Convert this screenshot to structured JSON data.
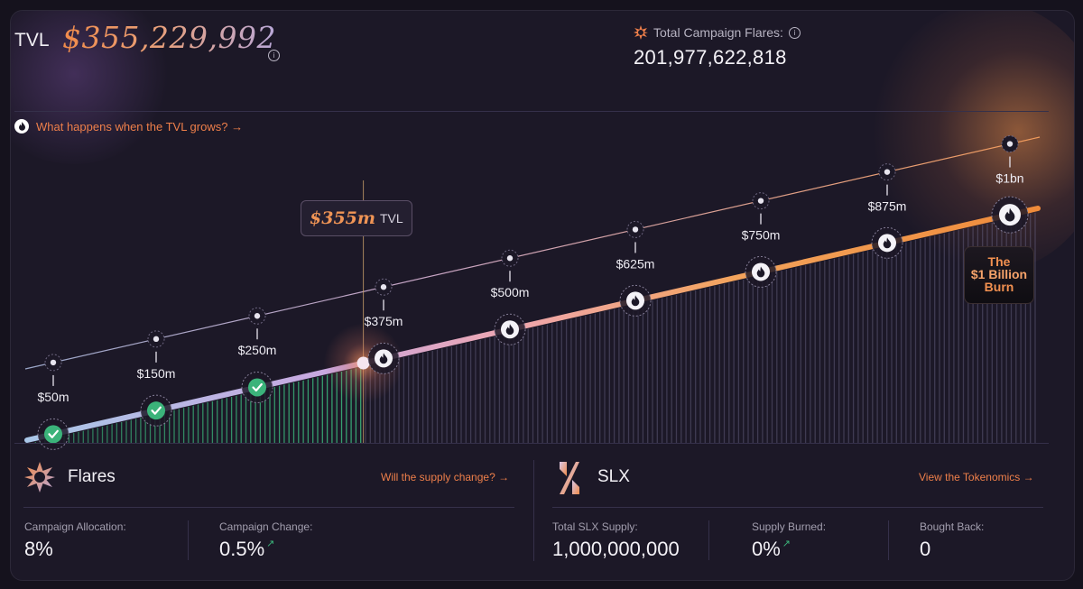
{
  "header": {
    "tvl_label": "TVL",
    "tvl_value": "$355,229,992",
    "flares_label": "Total Campaign Flares:",
    "flares_value": "201,977,622,818"
  },
  "link_tvl": "What happens when the TVL grows? →",
  "chart": {
    "current_value": "$355m",
    "current_suffix": "TVL",
    "milestones": [
      {
        "label": "$50m",
        "tvl_m": 50,
        "reached": true
      },
      {
        "label": "$150m",
        "tvl_m": 150,
        "reached": true
      },
      {
        "label": "$250m",
        "tvl_m": 250,
        "reached": true
      },
      {
        "label": "$375m",
        "tvl_m": 375,
        "reached": false
      },
      {
        "label": "$500m",
        "tvl_m": 500,
        "reached": false
      },
      {
        "label": "$625m",
        "tvl_m": 625,
        "reached": false
      },
      {
        "label": "$750m",
        "tvl_m": 750,
        "reached": false
      },
      {
        "label": "$875m",
        "tvl_m": 875,
        "reached": false
      },
      {
        "label": "$1bn",
        "tvl_m": 1000,
        "reached": false
      }
    ],
    "current_m": 355,
    "burn_line1": "The",
    "burn_line2": "$1 Billion",
    "burn_line3": "Burn",
    "accent": "#ee7f4a",
    "reached_color": "#3bb37a"
  },
  "flares_section": {
    "title": "Flares",
    "link": "Will the supply change? →",
    "stats": [
      {
        "label": "Campaign Allocation:",
        "value": "8%"
      },
      {
        "label": "Campaign Change:",
        "value": "0.5%"
      }
    ],
    "arrow": "↗"
  },
  "slx_section": {
    "title": "SLX",
    "link": "View the Tokenomics →",
    "stats": [
      {
        "label": "Total SLX Supply:",
        "value": "1,000,000,000"
      },
      {
        "label": "Supply Burned:",
        "value": "0%"
      },
      {
        "label": "Bought Back:",
        "value": "0"
      }
    ],
    "arrow": "↗"
  }
}
